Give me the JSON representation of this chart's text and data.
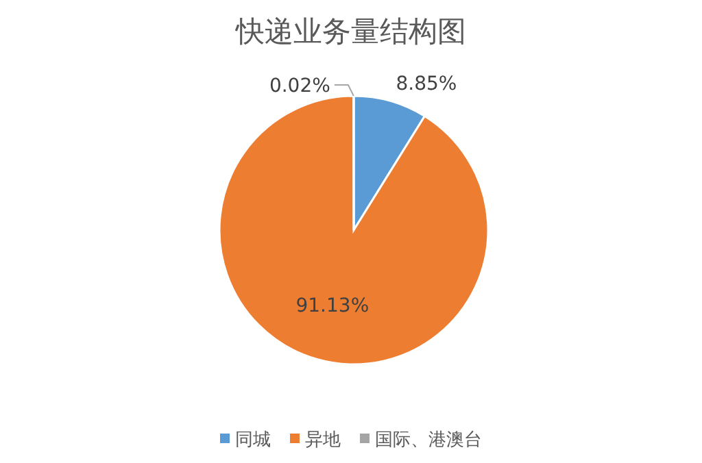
{
  "chart_data": {
    "type": "pie",
    "title": "快递业务量结构图",
    "categories": [
      "同城",
      "异地",
      "国际、港澳台"
    ],
    "values": [
      8.85,
      91.13,
      0.02
    ],
    "colors": [
      "#5b9bd5",
      "#ed7d31",
      "#a5a5a5"
    ],
    "value_labels": [
      "8.85%",
      "91.13%",
      "0.02%"
    ],
    "legend": "bottom"
  }
}
